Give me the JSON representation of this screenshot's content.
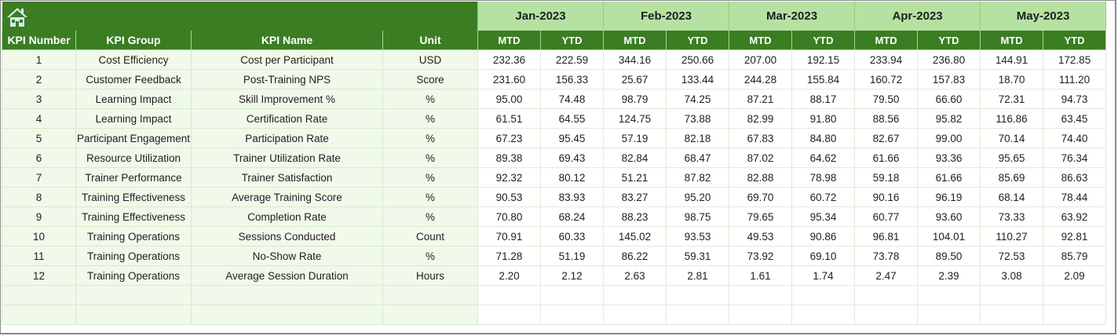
{
  "header": {
    "home_icon": "home-icon",
    "months": [
      "Jan-2023",
      "Feb-2023",
      "Mar-2023",
      "Apr-2023",
      "May-2023"
    ],
    "columns": [
      "KPI Number",
      "KPI Group",
      "KPI Name",
      "Unit"
    ],
    "sub_labels": [
      "MTD",
      "YTD",
      "MTD",
      "YTD",
      "MTD",
      "YTD",
      "MTD",
      "YTD",
      "MTD",
      "YTD"
    ]
  },
  "colors": {
    "header_dark_green": "#3b7d23",
    "month_light_green": "#b5e2a3",
    "left_cell_bg": "#f0f9ea",
    "grid_line": "#d7ecc8"
  },
  "rows": [
    {
      "num": "1",
      "group": "Cost Efficiency",
      "name": "Cost per Participant",
      "unit": "USD",
      "values": [
        "232.36",
        "222.59",
        "344.16",
        "250.66",
        "207.00",
        "192.15",
        "233.94",
        "236.80",
        "144.91",
        "172.85"
      ]
    },
    {
      "num": "2",
      "group": "Customer Feedback",
      "name": "Post-Training NPS",
      "unit": "Score",
      "values": [
        "231.60",
        "156.33",
        "25.67",
        "133.44",
        "244.28",
        "155.84",
        "160.72",
        "157.83",
        "18.70",
        "111.20"
      ]
    },
    {
      "num": "3",
      "group": "Learning Impact",
      "name": "Skill Improvement %",
      "unit": "%",
      "values": [
        "95.00",
        "74.48",
        "98.79",
        "74.25",
        "87.21",
        "88.17",
        "79.50",
        "66.60",
        "72.31",
        "94.73"
      ]
    },
    {
      "num": "4",
      "group": "Learning Impact",
      "name": "Certification Rate",
      "unit": "%",
      "values": [
        "61.51",
        "64.55",
        "124.75",
        "73.88",
        "82.99",
        "91.80",
        "88.56",
        "95.82",
        "116.86",
        "63.45"
      ]
    },
    {
      "num": "5",
      "group": "Participant Engagement",
      "name": "Participation Rate",
      "unit": "%",
      "values": [
        "67.23",
        "95.45",
        "57.19",
        "82.18",
        "67.83",
        "84.80",
        "82.67",
        "99.00",
        "70.14",
        "74.40"
      ]
    },
    {
      "num": "6",
      "group": "Resource Utilization",
      "name": "Trainer Utilization Rate",
      "unit": "%",
      "values": [
        "89.38",
        "69.43",
        "82.84",
        "68.47",
        "87.02",
        "64.62",
        "61.66",
        "93.36",
        "95.65",
        "76.34"
      ]
    },
    {
      "num": "7",
      "group": "Trainer Performance",
      "name": "Trainer Satisfaction",
      "unit": "%",
      "values": [
        "92.32",
        "80.12",
        "51.21",
        "87.82",
        "82.88",
        "78.98",
        "59.18",
        "61.66",
        "85.69",
        "86.63"
      ]
    },
    {
      "num": "8",
      "group": "Training Effectiveness",
      "name": "Average Training Score",
      "unit": "%",
      "values": [
        "90.53",
        "83.93",
        "83.27",
        "95.20",
        "69.70",
        "60.72",
        "90.16",
        "96.19",
        "68.14",
        "78.44"
      ]
    },
    {
      "num": "9",
      "group": "Training Effectiveness",
      "name": "Completion Rate",
      "unit": "%",
      "values": [
        "70.80",
        "68.24",
        "88.23",
        "98.75",
        "79.65",
        "95.34",
        "60.77",
        "93.60",
        "73.33",
        "63.92"
      ]
    },
    {
      "num": "10",
      "group": "Training Operations",
      "name": "Sessions Conducted",
      "unit": "Count",
      "values": [
        "70.91",
        "60.33",
        "145.02",
        "93.53",
        "49.53",
        "90.86",
        "96.81",
        "104.01",
        "110.27",
        "92.81"
      ]
    },
    {
      "num": "11",
      "group": "Training Operations",
      "name": "No-Show Rate",
      "unit": "%",
      "values": [
        "71.28",
        "51.19",
        "86.22",
        "59.31",
        "73.92",
        "69.10",
        "73.78",
        "89.50",
        "72.53",
        "85.79"
      ]
    },
    {
      "num": "12",
      "group": "Training Operations",
      "name": "Average Session Duration",
      "unit": "Hours",
      "values": [
        "2.20",
        "2.12",
        "2.63",
        "2.81",
        "1.61",
        "1.74",
        "2.47",
        "2.39",
        "3.08",
        "2.09"
      ]
    }
  ],
  "empty_rows": 2
}
